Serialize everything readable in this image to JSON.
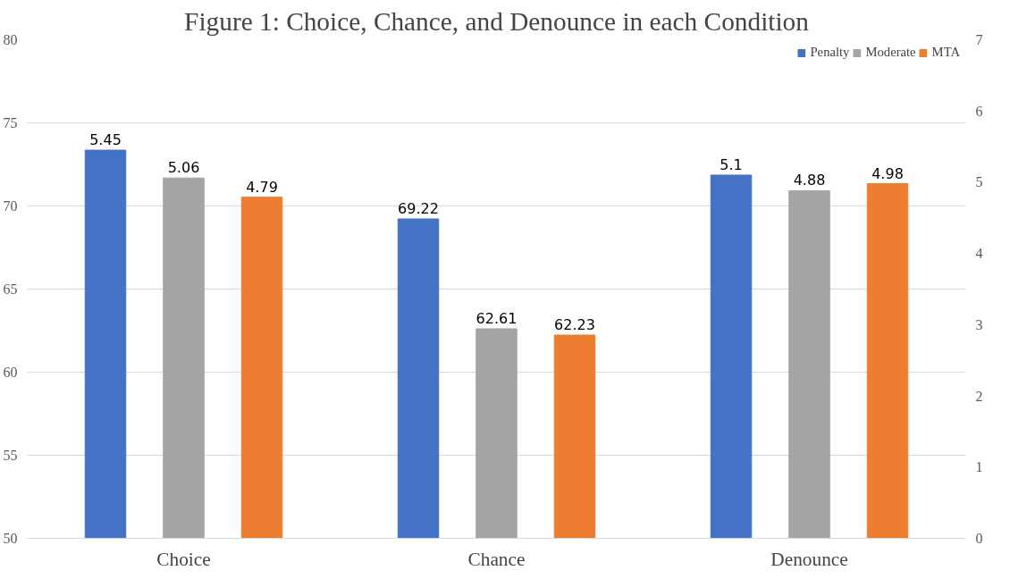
{
  "chart_data": {
    "type": "bar",
    "title": "Figure 1: Choice, Chance, and Denounce in each Condition",
    "categories": [
      "Choice",
      "Chance",
      "Denounce"
    ],
    "series": [
      {
        "name": "Penalty",
        "color": "#4472c4",
        "values": [
          null,
          69.22,
          null
        ]
      },
      {
        "name": "Moderate",
        "color": "#a5a5a5",
        "values": [
          null,
          62.61,
          null
        ]
      },
      {
        "name": "MTA",
        "color": "#ed7d31",
        "values": [
          null,
          62.23,
          null
        ]
      },
      {
        "color": "#4472c4",
        "axis": "y2",
        "values": [
          5.45,
          null,
          5.1
        ]
      },
      {
        "color": "#a5a5a5",
        "axis": "y2",
        "values": [
          5.06,
          null,
          4.88
        ]
      },
      {
        "color": "#ed7d31",
        "axis": "y2",
        "values": [
          4.79,
          null,
          4.98
        ]
      }
    ],
    "ylim": [
      50,
      80
    ],
    "yticks": [
      50,
      55,
      60,
      65,
      70,
      75,
      80
    ],
    "y2lim": [
      0,
      7
    ],
    "y2ticks": [
      0,
      1,
      2,
      3,
      4,
      5,
      6,
      7
    ],
    "data_labels": true,
    "grid": "y",
    "legend": "top right"
  }
}
